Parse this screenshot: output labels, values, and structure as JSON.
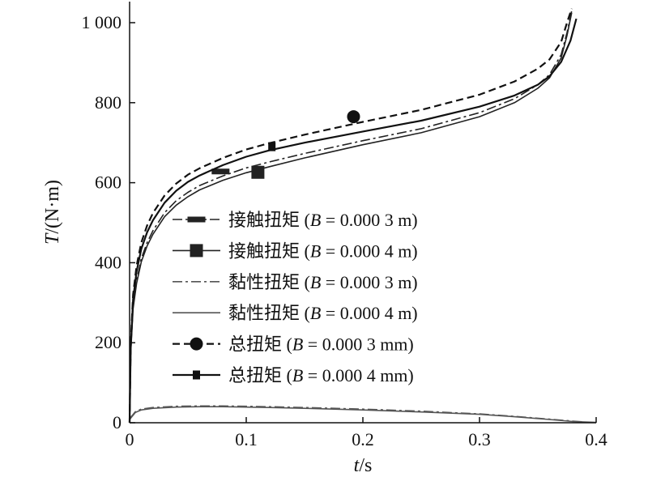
{
  "chart_data": {
    "type": "line",
    "xlabel": "t/s",
    "ylabel": "T/(N·m)",
    "xlim": [
      0,
      0.4
    ],
    "ylim": [
      0,
      1050
    ],
    "xticks": [
      0,
      0.1,
      0.2,
      0.3,
      0.4
    ],
    "xtick_labels": [
      "0",
      "0.1",
      "0.2",
      "0.3",
      "0.4"
    ],
    "yticks": [
      0,
      200,
      400,
      600,
      800,
      1000
    ],
    "ytick_labels": [
      "0",
      "200",
      "400",
      "600",
      "800",
      "1 000"
    ],
    "grid": false,
    "legend_position": "center-left",
    "series": [
      {
        "name": "接触扭矩 (B = 0.000 3 m)",
        "style": "dashdot",
        "marker": "hbar",
        "color": "#222222",
        "x": [
          0,
          0.001,
          0.003,
          0.006,
          0.01,
          0.015,
          0.02,
          0.03,
          0.04,
          0.05,
          0.06,
          0.08,
          0.1,
          0.12,
          0.15,
          0.2,
          0.25,
          0.3,
          0.33,
          0.35,
          0.36,
          0.37,
          0.375,
          0.379
        ],
        "y": [
          0,
          180,
          290,
          355,
          410,
          450,
          480,
          525,
          555,
          576,
          593,
          617,
          637,
          652,
          673,
          705,
          735,
          775,
          810,
          845,
          870,
          920,
          975,
          1030
        ],
        "markers_x": [
          0.078
        ],
        "markers_y": [
          628
        ]
      },
      {
        "name": "接触扭矩 (B = 0.000 4 m)",
        "style": "solid",
        "marker": "square",
        "color": "#222222",
        "x": [
          0,
          0.001,
          0.003,
          0.006,
          0.01,
          0.015,
          0.02,
          0.03,
          0.04,
          0.05,
          0.06,
          0.08,
          0.1,
          0.12,
          0.15,
          0.2,
          0.25,
          0.3,
          0.33,
          0.35,
          0.36,
          0.37,
          0.375,
          0.379
        ],
        "y": [
          0,
          175,
          285,
          348,
          402,
          442,
          471,
          515,
          544,
          565,
          582,
          606,
          625,
          640,
          662,
          695,
          725,
          765,
          800,
          836,
          862,
          912,
          968,
          1025
        ],
        "markers_x": [
          0.11
        ],
        "markers_y": [
          626
        ]
      },
      {
        "name": "黏性扭矩 (B = 0.000 3 m)",
        "style": "dashdot",
        "marker": "none",
        "color": "#555555",
        "x": [
          0,
          0.005,
          0.01,
          0.02,
          0.04,
          0.06,
          0.08,
          0.1,
          0.12,
          0.15,
          0.2,
          0.25,
          0.3,
          0.33,
          0.36,
          0.38,
          0.39
        ],
        "y": [
          10,
          28,
          34,
          38,
          41,
          42,
          42,
          41,
          40,
          38,
          34,
          29,
          22,
          16,
          9,
          4,
          2
        ]
      },
      {
        "name": "黏性扭矩 (B = 0.000 4 m)",
        "style": "solid",
        "marker": "none",
        "color": "#555555",
        "x": [
          0,
          0.005,
          0.01,
          0.02,
          0.04,
          0.06,
          0.08,
          0.1,
          0.12,
          0.15,
          0.2,
          0.25,
          0.3,
          0.33,
          0.36,
          0.38,
          0.4
        ],
        "y": [
          8,
          26,
          32,
          36,
          39,
          40,
          40,
          39,
          38,
          36,
          32,
          27,
          21,
          15,
          8,
          3,
          1
        ]
      },
      {
        "name": "总扭矩 (B = 0.000 3 mm)",
        "style": "dashed",
        "marker": "circle",
        "color": "#111111",
        "x": [
          0,
          0.001,
          0.003,
          0.006,
          0.01,
          0.015,
          0.02,
          0.03,
          0.04,
          0.05,
          0.06,
          0.08,
          0.1,
          0.12,
          0.15,
          0.2,
          0.25,
          0.3,
          0.33,
          0.35,
          0.36,
          0.37,
          0.375,
          0.379
        ],
        "y": [
          0,
          200,
          320,
          392,
          450,
          493,
          524,
          568,
          598,
          620,
          636,
          662,
          683,
          699,
          720,
          752,
          782,
          820,
          853,
          885,
          908,
          952,
          1000,
          1035
        ],
        "markers_x": [
          0.192
        ],
        "markers_y": [
          765
        ]
      },
      {
        "name": "总扭矩 (B = 0.000 4 mm)",
        "style": "solid",
        "marker": "small-square",
        "color": "#111111",
        "x": [
          0,
          0.001,
          0.003,
          0.006,
          0.01,
          0.015,
          0.02,
          0.03,
          0.04,
          0.05,
          0.06,
          0.08,
          0.1,
          0.12,
          0.15,
          0.2,
          0.25,
          0.3,
          0.33,
          0.35,
          0.36,
          0.37,
          0.378,
          0.383
        ],
        "y": [
          0,
          190,
          308,
          378,
          434,
          476,
          506,
          550,
          580,
          602,
          618,
          644,
          665,
          681,
          700,
          728,
          755,
          790,
          818,
          845,
          866,
          902,
          955,
          1010
        ],
        "markers_x": [
          0.122
        ],
        "markers_y": [
          690
        ]
      }
    ]
  }
}
